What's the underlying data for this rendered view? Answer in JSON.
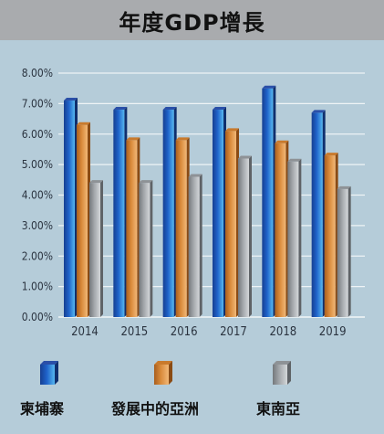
{
  "chart_data": {
    "type": "bar",
    "title": "年度GDP增長",
    "xlabel": "",
    "ylabel": "",
    "categories": [
      "2014",
      "2015",
      "2016",
      "2017",
      "2018",
      "2019"
    ],
    "series": [
      {
        "name": "柬埔寨",
        "values": [
          7.1,
          6.8,
          6.8,
          6.8,
          7.5,
          6.7
        ],
        "color": "#1f62c9"
      },
      {
        "name": "發展中的亞洲",
        "values": [
          6.3,
          5.8,
          5.8,
          6.1,
          5.7,
          5.3
        ],
        "color": "#d98a3a"
      },
      {
        "name": "東南亞",
        "values": [
          4.4,
          4.4,
          4.6,
          5.2,
          5.1,
          4.2
        ],
        "color": "#a3a7ab"
      }
    ],
    "ylim": [
      0,
      8
    ],
    "yticks": [
      "0.00%",
      "1.00%",
      "2.00%",
      "3.00%",
      "4.00%",
      "5.00%",
      "6.00%",
      "7.00%",
      "8.00%"
    ],
    "grid": true,
    "legend_position": "bottom"
  }
}
